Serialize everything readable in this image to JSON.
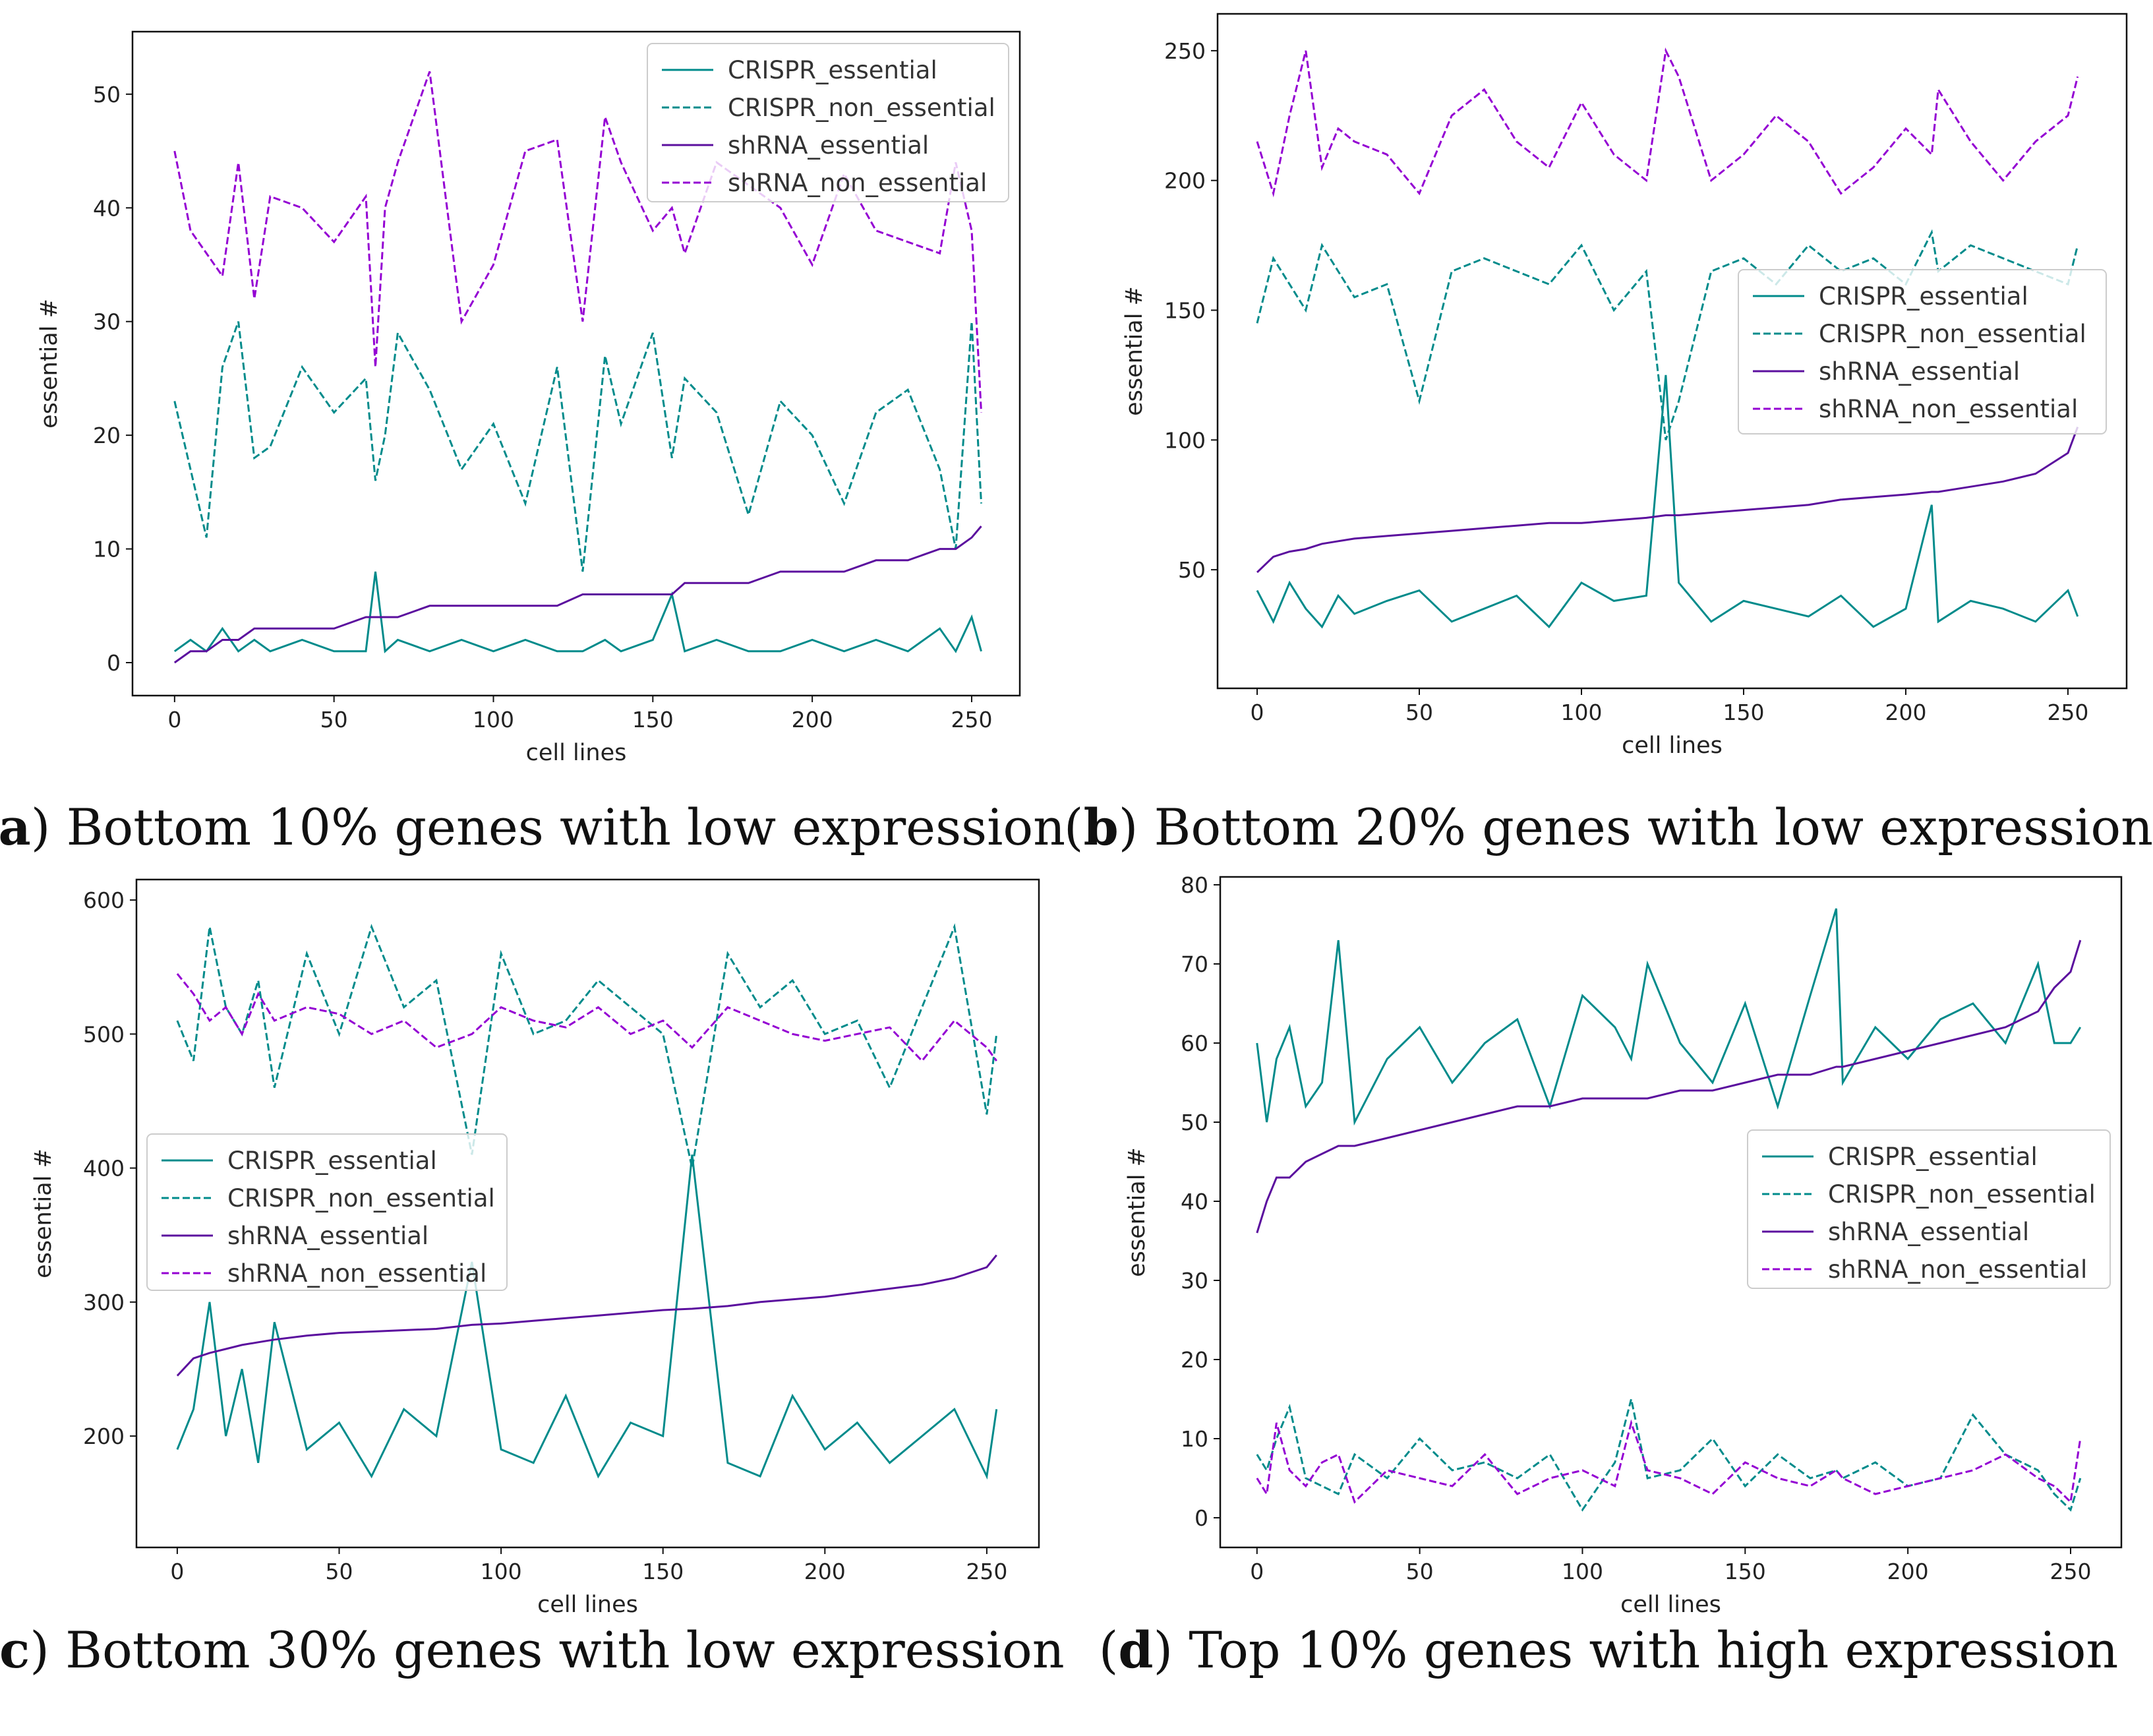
{
  "chart_data": [
    {
      "type": "line",
      "caption_tag": "a",
      "caption": "Bottom 10% genes with low expression",
      "xlabel": "cell lines",
      "ylabel": "essential #",
      "xlim": [
        -13.2,
        265.1
      ],
      "ylim": [
        -2.9,
        55.5
      ],
      "xticks": [
        0,
        50,
        100,
        150,
        200,
        250
      ],
      "yticks": [
        0,
        10,
        20,
        30,
        40,
        50
      ],
      "legend_position": "top-right",
      "x": [
        0,
        5,
        10,
        15,
        20,
        25,
        30,
        40,
        50,
        60,
        63,
        66,
        70,
        80,
        90,
        100,
        110,
        120,
        128,
        135,
        140,
        150,
        156,
        160,
        170,
        180,
        190,
        200,
        210,
        220,
        230,
        240,
        245,
        250,
        253
      ],
      "series": [
        {
          "name": "CRISPR_essential",
          "style": "solid",
          "color": "#008b8b",
          "values": [
            1,
            2,
            1,
            3,
            1,
            2,
            1,
            2,
            1,
            1,
            8,
            1,
            2,
            1,
            2,
            1,
            2,
            1,
            1,
            2,
            1,
            2,
            6,
            1,
            2,
            1,
            1,
            2,
            1,
            2,
            1,
            3,
            1,
            4,
            1
          ]
        },
        {
          "name": "CRISPR_non_essential",
          "style": "dashed",
          "color": "#008b8b",
          "values": [
            23,
            17,
            11,
            26,
            30,
            18,
            19,
            26,
            22,
            25,
            16,
            20,
            29,
            24,
            17,
            21,
            14,
            26,
            8,
            27,
            21,
            29,
            18,
            25,
            22,
            13,
            23,
            20,
            14,
            22,
            24,
            17,
            10,
            30,
            14
          ]
        },
        {
          "name": "shRNA_essential",
          "style": "solid",
          "color": "#5b0f9e",
          "values": [
            0,
            1,
            1,
            2,
            2,
            3,
            3,
            3,
            3,
            4,
            4,
            4,
            4,
            5,
            5,
            5,
            5,
            5,
            6,
            6,
            6,
            6,
            6,
            7,
            7,
            7,
            8,
            8,
            8,
            9,
            9,
            10,
            10,
            11,
            12
          ]
        },
        {
          "name": "shRNA_non_essential",
          "style": "dashed",
          "color": "#9400d3",
          "values": [
            45,
            38,
            36,
            34,
            44,
            32,
            41,
            40,
            37,
            41,
            26,
            40,
            44,
            52,
            30,
            35,
            45,
            46,
            30,
            48,
            44,
            38,
            40,
            36,
            44,
            42,
            40,
            35,
            43,
            38,
            37,
            36,
            44,
            38,
            22
          ]
        }
      ]
    },
    {
      "type": "line",
      "caption_tag": "b",
      "caption": "Bottom 20% genes with low expression",
      "xlabel": "cell lines",
      "ylabel": "essential #",
      "xlim": [
        -12.2,
        268.1
      ],
      "ylim": [
        4.3,
        264.2
      ],
      "xticks": [
        0,
        50,
        100,
        150,
        200,
        250
      ],
      "yticks": [
        50,
        100,
        150,
        200,
        250
      ],
      "legend_position": "center-right",
      "x": [
        0,
        5,
        10,
        15,
        20,
        25,
        30,
        40,
        50,
        60,
        70,
        80,
        90,
        100,
        110,
        120,
        126,
        130,
        140,
        150,
        160,
        170,
        180,
        190,
        200,
        208,
        210,
        220,
        230,
        240,
        250,
        253
      ],
      "series": [
        {
          "name": "CRISPR_essential",
          "style": "solid",
          "color": "#008b8b",
          "values": [
            42,
            30,
            45,
            35,
            28,
            40,
            33,
            38,
            42,
            30,
            35,
            40,
            28,
            45,
            38,
            40,
            125,
            45,
            30,
            38,
            35,
            32,
            40,
            28,
            35,
            75,
            30,
            38,
            35,
            30,
            42,
            32
          ]
        },
        {
          "name": "CRISPR_non_essential",
          "style": "dashed",
          "color": "#008b8b",
          "values": [
            145,
            170,
            160,
            150,
            175,
            165,
            155,
            160,
            115,
            165,
            170,
            165,
            160,
            175,
            150,
            165,
            100,
            115,
            165,
            170,
            160,
            175,
            165,
            170,
            160,
            180,
            165,
            175,
            170,
            165,
            160,
            175
          ]
        },
        {
          "name": "shRNA_essential",
          "style": "solid",
          "color": "#5b0f9e",
          "values": [
            49,
            55,
            57,
            58,
            60,
            61,
            62,
            63,
            64,
            65,
            66,
            67,
            68,
            68,
            69,
            70,
            71,
            71,
            72,
            73,
            74,
            75,
            77,
            78,
            79,
            80,
            80,
            82,
            84,
            87,
            95,
            105
          ]
        },
        {
          "name": "shRNA_non_essential",
          "style": "dashed",
          "color": "#9400d3",
          "values": [
            215,
            195,
            225,
            250,
            205,
            220,
            215,
            210,
            195,
            225,
            235,
            215,
            205,
            230,
            210,
            200,
            250,
            240,
            200,
            210,
            225,
            215,
            195,
            205,
            220,
            210,
            235,
            215,
            200,
            215,
            225,
            240
          ]
        }
      ]
    },
    {
      "type": "line",
      "caption_tag": "c",
      "caption": "Bottom 30% genes with low expression",
      "xlabel": "cell lines",
      "ylabel": "essential #",
      "xlim": [
        -12.6,
        266.1
      ],
      "ylim": [
        116.9,
        615.3
      ],
      "xticks": [
        0,
        50,
        100,
        150,
        200,
        250
      ],
      "yticks": [
        200,
        300,
        400,
        500,
        600
      ],
      "legend_position": "center-left",
      "x": [
        0,
        5,
        10,
        15,
        20,
        25,
        30,
        40,
        50,
        60,
        70,
        80,
        91,
        100,
        110,
        120,
        130,
        140,
        150,
        159,
        170,
        180,
        190,
        200,
        210,
        220,
        230,
        240,
        250,
        253
      ],
      "series": [
        {
          "name": "CRISPR_essential",
          "style": "solid",
          "color": "#008b8b",
          "values": [
            190,
            220,
            300,
            200,
            250,
            180,
            285,
            190,
            210,
            170,
            220,
            200,
            330,
            190,
            180,
            230,
            170,
            210,
            200,
            410,
            180,
            170,
            230,
            190,
            210,
            180,
            200,
            220,
            170,
            220
          ]
        },
        {
          "name": "CRISPR_non_essential",
          "style": "dashed",
          "color": "#008b8b",
          "values": [
            510,
            480,
            580,
            520,
            500,
            540,
            460,
            560,
            500,
            580,
            520,
            540,
            410,
            560,
            500,
            510,
            540,
            520,
            500,
            400,
            560,
            520,
            540,
            500,
            510,
            460,
            520,
            580,
            440,
            500
          ]
        },
        {
          "name": "shRNA_essential",
          "style": "solid",
          "color": "#5b0f9e",
          "values": [
            245,
            258,
            262,
            265,
            268,
            270,
            272,
            275,
            277,
            278,
            279,
            280,
            283,
            284,
            286,
            288,
            290,
            292,
            294,
            295,
            297,
            300,
            302,
            304,
            307,
            310,
            313,
            318,
            326,
            335
          ]
        },
        {
          "name": "shRNA_non_essential",
          "style": "dashed",
          "color": "#9400d3",
          "values": [
            545,
            530,
            510,
            520,
            500,
            530,
            510,
            520,
            515,
            500,
            510,
            490,
            500,
            520,
            510,
            505,
            520,
            500,
            510,
            490,
            520,
            510,
            500,
            495,
            500,
            505,
            480,
            510,
            490,
            480
          ]
        }
      ]
    },
    {
      "type": "line",
      "caption_tag": "d",
      "caption": "Top 10% genes with high expression",
      "xlabel": "cell lines",
      "ylabel": "essential #",
      "xlim": [
        -11.3,
        265.6
      ],
      "ylim": [
        -3.75,
        81
      ],
      "xticks": [
        0,
        50,
        100,
        150,
        200,
        250
      ],
      "yticks": [
        0,
        10,
        20,
        30,
        40,
        50,
        60,
        70,
        80
      ],
      "legend_position": "center-right",
      "x": [
        0,
        3,
        6,
        10,
        15,
        20,
        25,
        30,
        40,
        50,
        60,
        70,
        80,
        90,
        100,
        110,
        115,
        120,
        130,
        140,
        150,
        160,
        170,
        178,
        180,
        190,
        200,
        210,
        220,
        230,
        240,
        245,
        250,
        253
      ],
      "series": [
        {
          "name": "CRISPR_essential",
          "style": "solid",
          "color": "#008b8b",
          "values": [
            60,
            50,
            58,
            62,
            52,
            55,
            73,
            50,
            58,
            62,
            55,
            60,
            63,
            52,
            66,
            62,
            58,
            70,
            60,
            55,
            65,
            52,
            66,
            77,
            55,
            62,
            58,
            63,
            65,
            60,
            70,
            60,
            60,
            62
          ]
        },
        {
          "name": "CRISPR_non_essential",
          "style": "dashed",
          "color": "#008b8b",
          "values": [
            8,
            6,
            10,
            14,
            5,
            4,
            3,
            8,
            5,
            10,
            6,
            7,
            5,
            8,
            1,
            7,
            15,
            5,
            6,
            10,
            4,
            8,
            5,
            6,
            5,
            7,
            4,
            5,
            13,
            8,
            6,
            3,
            1,
            5
          ]
        },
        {
          "name": "shRNA_essential",
          "style": "solid",
          "color": "#5b0f9e",
          "values": [
            36,
            40,
            43,
            43,
            45,
            46,
            47,
            47,
            48,
            49,
            50,
            51,
            52,
            52,
            53,
            53,
            53,
            53,
            54,
            54,
            55,
            56,
            56,
            57,
            57,
            58,
            59,
            60,
            61,
            62,
            64,
            67,
            69,
            73
          ]
        },
        {
          "name": "shRNA_non_essential",
          "style": "dashed",
          "color": "#9400d3",
          "values": [
            5,
            3,
            12,
            6,
            4,
            7,
            8,
            2,
            6,
            5,
            4,
            8,
            3,
            5,
            6,
            4,
            12,
            6,
            5,
            3,
            7,
            5,
            4,
            6,
            5,
            3,
            4,
            5,
            6,
            8,
            5,
            4,
            2,
            10
          ]
        }
      ]
    }
  ]
}
